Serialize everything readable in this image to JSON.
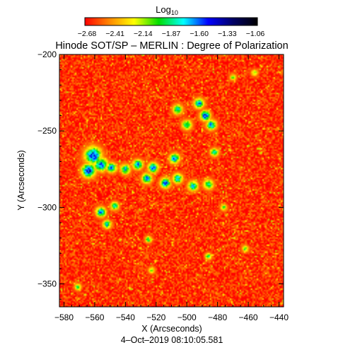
{
  "chart_data": {
    "type": "heatmap",
    "title": "Hinode SOT/SP – MERLIN : Degree of Polarization",
    "colorbar": {
      "label_main": "Log",
      "label_sub": "10",
      "ticks": [
        "−2.68",
        "−2.41",
        "−2.14",
        "−1.87",
        "−1.60",
        "−1.33",
        "−1.06"
      ],
      "range": [
        -2.68,
        -1.06
      ],
      "colors": [
        "#ff0000",
        "#ff8800",
        "#ffff00",
        "#00dd00",
        "#00ffff",
        "#0000ff",
        "#000066",
        "#000000"
      ]
    },
    "xlabel": "X (Arcseconds)",
    "ylabel": "Y (Arcseconds)",
    "xlim": [
      -583,
      -437
    ],
    "ylim": [
      -365,
      -200
    ],
    "x_ticks": [
      {
        "value": -580,
        "label": "−580"
      },
      {
        "value": -560,
        "label": "−560"
      },
      {
        "value": -540,
        "label": "−540"
      },
      {
        "value": -520,
        "label": "−520"
      },
      {
        "value": -500,
        "label": "−500"
      },
      {
        "value": -480,
        "label": "−480"
      },
      {
        "value": -460,
        "label": "−460"
      },
      {
        "value": -440,
        "label": "−440"
      }
    ],
    "y_ticks": [
      {
        "value": -200,
        "label": "−200"
      },
      {
        "value": -250,
        "label": "−250"
      },
      {
        "value": -300,
        "label": "−300"
      },
      {
        "value": -350,
        "label": "−350"
      }
    ],
    "footer": "4–Oct–2019 08:10:05.581",
    "background_level": -2.6,
    "features": [
      {
        "x": -561,
        "y": -266,
        "r": 5,
        "level": -1.3
      },
      {
        "x": -564,
        "y": -276,
        "r": 4,
        "level": -1.2
      },
      {
        "x": -556,
        "y": -272,
        "r": 4,
        "level": -1.4
      },
      {
        "x": -549,
        "y": -274,
        "r": 3,
        "level": -1.5
      },
      {
        "x": -540,
        "y": -275,
        "r": 3,
        "level": -1.6
      },
      {
        "x": -532,
        "y": -272,
        "r": 3,
        "level": -1.5
      },
      {
        "x": -522,
        "y": -274,
        "r": 3,
        "level": -1.4
      },
      {
        "x": -526,
        "y": -281,
        "r": 3,
        "level": -1.5
      },
      {
        "x": -514,
        "y": -284,
        "r": 3,
        "level": -1.4
      },
      {
        "x": -506,
        "y": -281,
        "r": 3,
        "level": -1.6
      },
      {
        "x": -508,
        "y": -268,
        "r": 3,
        "level": -1.5
      },
      {
        "x": -496,
        "y": -286,
        "r": 3,
        "level": -1.6
      },
      {
        "x": -486,
        "y": -285,
        "r": 3,
        "level": -1.7
      },
      {
        "x": -492,
        "y": -232,
        "r": 3,
        "level": -1.5
      },
      {
        "x": -488,
        "y": -240,
        "r": 3,
        "level": -1.3
      },
      {
        "x": -484,
        "y": -246,
        "r": 3,
        "level": -1.5
      },
      {
        "x": -500,
        "y": -246,
        "r": 3,
        "level": -1.7
      },
      {
        "x": -506,
        "y": -236,
        "r": 3,
        "level": -1.7
      },
      {
        "x": -482,
        "y": -264,
        "r": 2.5,
        "level": -1.7
      },
      {
        "x": -556,
        "y": -303,
        "r": 3,
        "level": -1.5
      },
      {
        "x": -552,
        "y": -311,
        "r": 2.5,
        "level": -1.6
      },
      {
        "x": -547,
        "y": -299,
        "r": 2.5,
        "level": -1.7
      },
      {
        "x": -525,
        "y": -321,
        "r": 2,
        "level": -1.8
      },
      {
        "x": -486,
        "y": -332,
        "r": 2,
        "level": -1.8
      },
      {
        "x": -462,
        "y": -327,
        "r": 2,
        "level": -1.9
      },
      {
        "x": -571,
        "y": -352,
        "r": 2,
        "level": -1.8
      },
      {
        "x": -523,
        "y": -341,
        "r": 2,
        "level": -2.0
      },
      {
        "x": -456,
        "y": -212,
        "r": 2,
        "level": -2.0
      },
      {
        "x": -476,
        "y": -300,
        "r": 2,
        "level": -1.9
      },
      {
        "x": -470,
        "y": -215,
        "r": 2,
        "level": -2.0
      }
    ]
  }
}
